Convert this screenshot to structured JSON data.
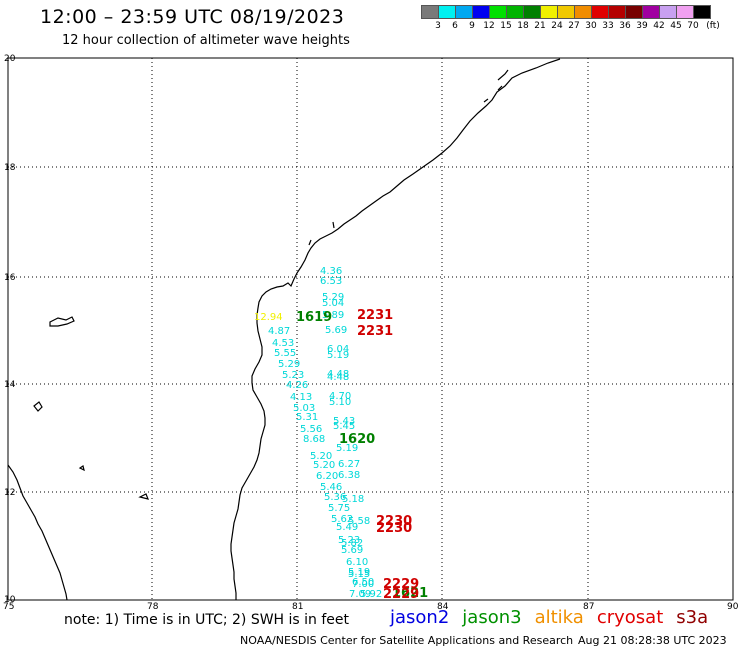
{
  "header": {
    "title": "12:00 – 23:59 UTC 08/19/2023",
    "subtitle": "12 hour collection of altimeter wave heights"
  },
  "legend": {
    "colors": [
      "#7a7a7a",
      "#00f0f0",
      "#00a8f0",
      "#0000f0",
      "#00e000",
      "#00b400",
      "#008000",
      "#f0f000",
      "#f0c800",
      "#f08c00",
      "#e00000",
      "#b40000",
      "#780000",
      "#a000a0",
      "#c8a0f0",
      "#f0a0f0",
      "#000000"
    ],
    "labels": [
      "3",
      "6",
      "9",
      "12",
      "15",
      "18",
      "21",
      "24",
      "27",
      "30",
      "33",
      "36",
      "39",
      "42",
      "45",
      "70"
    ],
    "unit": "(ft)"
  },
  "axes": {
    "y_labels": [
      "20",
      "18",
      "16",
      "14",
      "12",
      "10"
    ],
    "x_labels": [
      "75",
      "78",
      "81",
      "84",
      "87",
      "90"
    ]
  },
  "map_labels": {
    "labels": [
      {
        "text": "4.36",
        "color": "#00d8d8"
      },
      {
        "text": "6.53",
        "color": "#00d8d8"
      },
      {
        "text": "5.29",
        "color": "#00d8d8"
      },
      {
        "text": "5.04",
        "color": "#00d8d8"
      },
      {
        "text": "5.89",
        "color": "#00d8d8"
      },
      {
        "text": "5.69",
        "color": "#00d8d8"
      },
      {
        "text": "4.87",
        "color": "#00d8d8"
      },
      {
        "text": "4.53",
        "color": "#00d8d8"
      },
      {
        "text": "5.55",
        "color": "#00d8d8"
      },
      {
        "text": "5.29",
        "color": "#00d8d8"
      },
      {
        "text": "6.04",
        "color": "#00d8d8"
      },
      {
        "text": "5.19",
        "color": "#00d8d8"
      },
      {
        "text": "5.23",
        "color": "#00d8d8"
      },
      {
        "text": "4.48",
        "color": "#00d8d8"
      },
      {
        "text": "4.48",
        "color": "#00d8d8"
      },
      {
        "text": "4.26",
        "color": "#00d8d8"
      },
      {
        "text": "4.13",
        "color": "#00d8d8"
      },
      {
        "text": "4.70",
        "color": "#00d8d8"
      },
      {
        "text": "5.10",
        "color": "#00d8d8"
      },
      {
        "text": "5.03",
        "color": "#00d8d8"
      },
      {
        "text": "5.31",
        "color": "#00d8d8"
      },
      {
        "text": "5.43",
        "color": "#00d8d8"
      },
      {
        "text": "5.56",
        "color": "#00d8d8"
      },
      {
        "text": "5.45",
        "color": "#00d8d8"
      },
      {
        "text": "8.68",
        "color": "#00d8d8"
      },
      {
        "text": "5.19",
        "color": "#00d8d8"
      },
      {
        "text": "5.20",
        "color": "#00d8d8"
      },
      {
        "text": "5.20",
        "color": "#00d8d8"
      },
      {
        "text": "6.27",
        "color": "#00d8d8"
      },
      {
        "text": "6.20",
        "color": "#00d8d8"
      },
      {
        "text": "6.38",
        "color": "#00d8d8"
      },
      {
        "text": "5.46",
        "color": "#00d8d8"
      },
      {
        "text": "5.36",
        "color": "#00d8d8"
      },
      {
        "text": "5.18",
        "color": "#00d8d8"
      },
      {
        "text": "5.75",
        "color": "#00d8d8"
      },
      {
        "text": "5.62",
        "color": "#00d8d8"
      },
      {
        "text": "5.58",
        "color": "#00d8d8"
      },
      {
        "text": "5.49",
        "color": "#00d8d8"
      },
      {
        "text": "5.23",
        "color": "#00d8d8"
      },
      {
        "text": "5.82",
        "color": "#00d8d8"
      },
      {
        "text": "5.69",
        "color": "#00d8d8"
      },
      {
        "text": "6.10",
        "color": "#00d8d8"
      },
      {
        "text": "5.19",
        "color": "#00d8d8"
      },
      {
        "text": "5.15",
        "color": "#00d8d8"
      },
      {
        "text": "6.50",
        "color": "#00d8d8"
      },
      {
        "text": "7.00",
        "color": "#00d8d8"
      },
      {
        "text": "7.09",
        "color": "#00d8d8"
      },
      {
        "text": "5.92",
        "color": "#00d8d8"
      },
      {
        "text": "12.94",
        "color": "#f0f000"
      },
      {
        "text": "1619",
        "color": "#008000"
      },
      {
        "text": "1620",
        "color": "#008000"
      },
      {
        "text": "1621",
        "color": "#008000"
      },
      {
        "text": "2231",
        "color": "#d00000"
      },
      {
        "text": "2231",
        "color": "#d00000"
      },
      {
        "text": "2230",
        "color": "#d00000"
      },
      {
        "text": "2230",
        "color": "#d00000"
      },
      {
        "text": "2229",
        "color": "#d00000"
      },
      {
        "text": "2229",
        "color": "#d00000"
      }
    ]
  },
  "footer": {
    "note": "note: 1) Time is in UTC; 2) SWH is in feet",
    "satellites": [
      {
        "name": "jason2",
        "color": "#0000e0"
      },
      {
        "name": "jason3",
        "color": "#009000"
      },
      {
        "name": "altika",
        "color": "#f09000"
      },
      {
        "name": "cryosat",
        "color": "#e00000"
      },
      {
        "name": "s3a",
        "color": "#900000"
      }
    ],
    "credit": "NOAA/NESDIS Center for Satellite Applications and Research",
    "timestamp": "Aug 21 08:28:38 UTC 2023"
  }
}
